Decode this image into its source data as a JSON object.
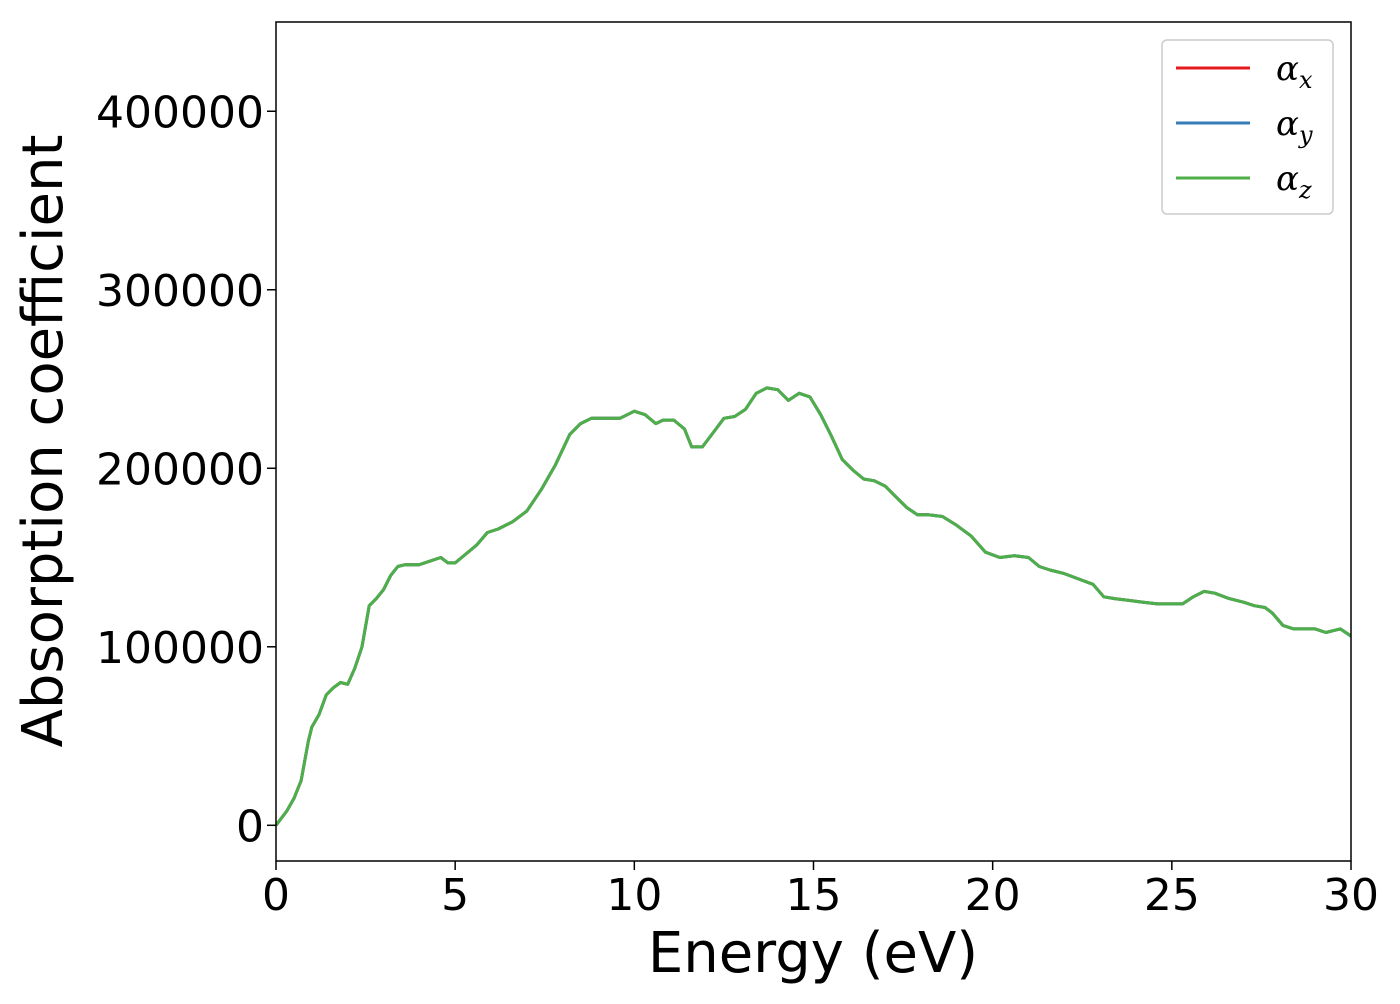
{
  "chart_data": {
    "type": "line",
    "title": "",
    "xlabel": "Energy (eV)",
    "ylabel": "Absorption coefficient",
    "xlim": [
      0,
      30
    ],
    "ylim": [
      -20000,
      450000
    ],
    "xticks": [
      0,
      5,
      10,
      15,
      20,
      25,
      30
    ],
    "yticks": [
      0,
      100000,
      200000,
      300000,
      400000
    ],
    "xtick_labels": [
      "0",
      "5",
      "10",
      "15",
      "20",
      "25",
      "30"
    ],
    "ytick_labels": [
      "0",
      "100000",
      "200000",
      "300000",
      "400000"
    ],
    "grid": false,
    "legend_position": "top-right",
    "series": [
      {
        "name": "αx",
        "symbol": "α",
        "subscript": "x",
        "color": "#e41a1c",
        "x": [
          0,
          0.3,
          0.5,
          0.7,
          0.9,
          1.0,
          1.2,
          1.4,
          1.6,
          1.8,
          2.0,
          2.2,
          2.4,
          2.6,
          2.8,
          3.0,
          3.2,
          3.4,
          3.6,
          3.8,
          4.0,
          4.3,
          4.6,
          4.8,
          5.0,
          5.3,
          5.6,
          5.9,
          6.2,
          6.6,
          7.0,
          7.4,
          7.8,
          8.2,
          8.5,
          8.8,
          9.2,
          9.6,
          10.0,
          10.3,
          10.6,
          10.8,
          11.1,
          11.4,
          11.6,
          11.9,
          12.2,
          12.5,
          12.8,
          13.1,
          13.4,
          13.7,
          14.0,
          14.3,
          14.6,
          14.9,
          15.2,
          15.5,
          15.8,
          16.1,
          16.4,
          16.7,
          17.0,
          17.3,
          17.6,
          17.9,
          18.2,
          18.6,
          19.0,
          19.4,
          19.8,
          20.2,
          20.6,
          21.0,
          21.3,
          21.6,
          22.0,
          22.4,
          22.8,
          23.1,
          23.4,
          23.8,
          24.2,
          24.6,
          25.0,
          25.3,
          25.6,
          25.9,
          26.2,
          26.6,
          27.0,
          27.3,
          27.6,
          27.8,
          28.1,
          28.4,
          28.7,
          29.0,
          29.3,
          29.5,
          29.7,
          30.0
        ],
        "y": [
          0,
          8000,
          15000,
          25000,
          47000,
          55000,
          62000,
          73000,
          77000,
          80000,
          79000,
          88000,
          100000,
          123000,
          127000,
          132000,
          140000,
          145000,
          146000,
          146000,
          146000,
          148000,
          150000,
          147000,
          147000,
          152000,
          157000,
          164000,
          166000,
          170000,
          176000,
          188000,
          202000,
          219000,
          225000,
          228000,
          228000,
          228000,
          232000,
          230000,
          225000,
          227000,
          227000,
          222000,
          212000,
          212000,
          220000,
          228000,
          229000,
          233000,
          242000,
          245000,
          244000,
          238000,
          242000,
          240000,
          230000,
          218000,
          205000,
          199000,
          194000,
          193000,
          190000,
          184000,
          178000,
          174000,
          174000,
          173000,
          168000,
          162000,
          153000,
          150000,
          151000,
          150000,
          145000,
          143000,
          141000,
          138000,
          135000,
          128000,
          127000,
          126000,
          125000,
          124000,
          124000,
          124000,
          128000,
          131000,
          130000,
          127000,
          125000,
          123000,
          122000,
          119000,
          112000,
          110000,
          110000,
          110000,
          108000,
          109000,
          110000,
          106000
        ]
      },
      {
        "name": "αy",
        "symbol": "α",
        "subscript": "y",
        "color": "#377eb8",
        "x": [
          0,
          0.3,
          0.5,
          0.7,
          0.9,
          1.0,
          1.2,
          1.4,
          1.6,
          1.8,
          2.0,
          2.2,
          2.4,
          2.6,
          2.8,
          3.0,
          3.2,
          3.4,
          3.6,
          3.8,
          4.0,
          4.3,
          4.6,
          4.8,
          5.0,
          5.3,
          5.6,
          5.9,
          6.2,
          6.6,
          7.0,
          7.4,
          7.8,
          8.2,
          8.5,
          8.8,
          9.2,
          9.6,
          10.0,
          10.3,
          10.6,
          10.8,
          11.1,
          11.4,
          11.6,
          11.9,
          12.2,
          12.5,
          12.8,
          13.1,
          13.4,
          13.7,
          14.0,
          14.3,
          14.6,
          14.9,
          15.2,
          15.5,
          15.8,
          16.1,
          16.4,
          16.7,
          17.0,
          17.3,
          17.6,
          17.9,
          18.2,
          18.6,
          19.0,
          19.4,
          19.8,
          20.2,
          20.6,
          21.0,
          21.3,
          21.6,
          22.0,
          22.4,
          22.8,
          23.1,
          23.4,
          23.8,
          24.2,
          24.6,
          25.0,
          25.3,
          25.6,
          25.9,
          26.2,
          26.6,
          27.0,
          27.3,
          27.6,
          27.8,
          28.1,
          28.4,
          28.7,
          29.0,
          29.3,
          29.5,
          29.7,
          30.0
        ],
        "y": [
          0,
          8000,
          15000,
          25000,
          47000,
          55000,
          62000,
          73000,
          77000,
          80000,
          79000,
          88000,
          100000,
          123000,
          127000,
          132000,
          140000,
          145000,
          146000,
          146000,
          146000,
          148000,
          150000,
          147000,
          147000,
          152000,
          157000,
          164000,
          166000,
          170000,
          176000,
          188000,
          202000,
          219000,
          225000,
          228000,
          228000,
          228000,
          232000,
          230000,
          225000,
          227000,
          227000,
          222000,
          212000,
          212000,
          220000,
          228000,
          229000,
          233000,
          242000,
          245000,
          244000,
          238000,
          242000,
          240000,
          230000,
          218000,
          205000,
          199000,
          194000,
          193000,
          190000,
          184000,
          178000,
          174000,
          174000,
          173000,
          168000,
          162000,
          153000,
          150000,
          151000,
          150000,
          145000,
          143000,
          141000,
          138000,
          135000,
          128000,
          127000,
          126000,
          125000,
          124000,
          124000,
          124000,
          128000,
          131000,
          130000,
          127000,
          125000,
          123000,
          122000,
          119000,
          112000,
          110000,
          110000,
          110000,
          108000,
          109000,
          110000,
          106000
        ]
      },
      {
        "name": "αz",
        "symbol": "α",
        "subscript": "z",
        "color": "#4daf4a",
        "x": [
          0,
          0.3,
          0.5,
          0.7,
          0.9,
          1.0,
          1.2,
          1.4,
          1.6,
          1.8,
          2.0,
          2.2,
          2.4,
          2.6,
          2.8,
          3.0,
          3.2,
          3.4,
          3.6,
          3.8,
          4.0,
          4.3,
          4.6,
          4.8,
          5.0,
          5.3,
          5.6,
          5.9,
          6.2,
          6.6,
          7.0,
          7.4,
          7.8,
          8.2,
          8.5,
          8.8,
          9.2,
          9.6,
          10.0,
          10.3,
          10.6,
          10.8,
          11.1,
          11.4,
          11.6,
          11.9,
          12.2,
          12.5,
          12.8,
          13.1,
          13.4,
          13.7,
          14.0,
          14.3,
          14.6,
          14.9,
          15.2,
          15.5,
          15.8,
          16.1,
          16.4,
          16.7,
          17.0,
          17.3,
          17.6,
          17.9,
          18.2,
          18.6,
          19.0,
          19.4,
          19.8,
          20.2,
          20.6,
          21.0,
          21.3,
          21.6,
          22.0,
          22.4,
          22.8,
          23.1,
          23.4,
          23.8,
          24.2,
          24.6,
          25.0,
          25.3,
          25.6,
          25.9,
          26.2,
          26.6,
          27.0,
          27.3,
          27.6,
          27.8,
          28.1,
          28.4,
          28.7,
          29.0,
          29.3,
          29.5,
          29.7,
          30.0
        ],
        "y": [
          0,
          8000,
          15000,
          25000,
          47000,
          55000,
          62000,
          73000,
          77000,
          80000,
          79000,
          88000,
          100000,
          123000,
          127000,
          132000,
          140000,
          145000,
          146000,
          146000,
          146000,
          148000,
          150000,
          147000,
          147000,
          152000,
          157000,
          164000,
          166000,
          170000,
          176000,
          188000,
          202000,
          219000,
          225000,
          228000,
          228000,
          228000,
          232000,
          230000,
          225000,
          227000,
          227000,
          222000,
          212000,
          212000,
          220000,
          228000,
          229000,
          233000,
          242000,
          245000,
          244000,
          238000,
          242000,
          240000,
          230000,
          218000,
          205000,
          199000,
          194000,
          193000,
          190000,
          184000,
          178000,
          174000,
          174000,
          173000,
          168000,
          162000,
          153000,
          150000,
          151000,
          150000,
          145000,
          143000,
          141000,
          138000,
          135000,
          128000,
          127000,
          126000,
          125000,
          124000,
          124000,
          124000,
          128000,
          131000,
          130000,
          127000,
          125000,
          123000,
          122000,
          119000,
          112000,
          110000,
          110000,
          110000,
          108000,
          109000,
          110000,
          106000
        ]
      }
    ]
  }
}
